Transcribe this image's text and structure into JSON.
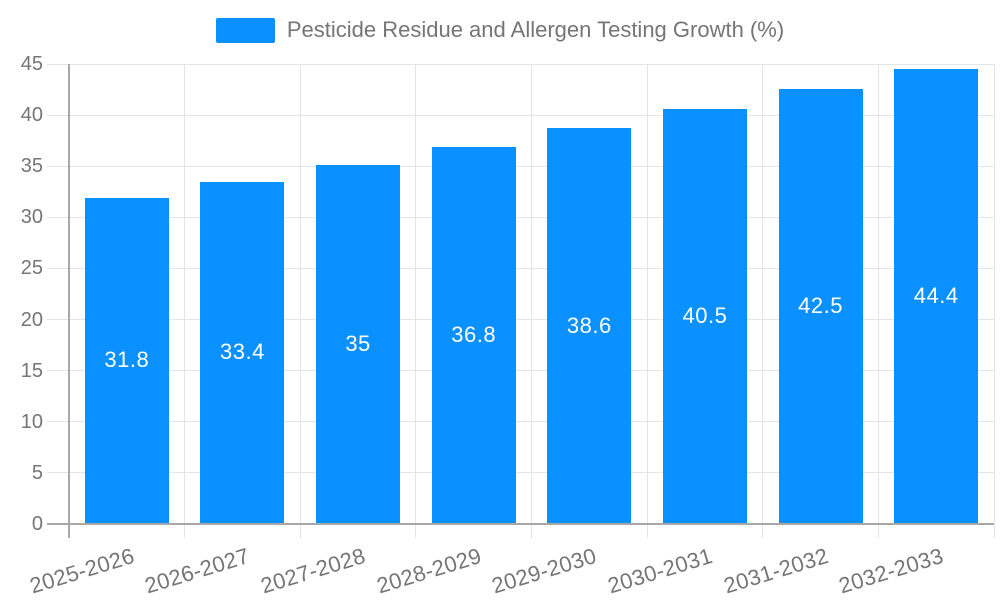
{
  "chart_data": {
    "type": "bar",
    "title": "Pesticide Residue and Allergen Testing Growth (%)",
    "categories": [
      "2025-2026",
      "2026-2027",
      "2027-2028",
      "2028-2029",
      "2029-2030",
      "2030-2031",
      "2031-2032",
      "2032-2033"
    ],
    "values": [
      31.8,
      33.4,
      35,
      36.8,
      38.6,
      40.5,
      42.5,
      44.4
    ],
    "value_labels": [
      "31.8",
      "33.4",
      "35",
      "36.8",
      "38.6",
      "40.5",
      "42.5",
      "44.4"
    ],
    "xlabel": "",
    "ylabel": "",
    "ylim": [
      0,
      45
    ],
    "ytick_step": 5,
    "ytick_labels": [
      "0",
      "5",
      "10",
      "15",
      "20",
      "25",
      "30",
      "35",
      "40",
      "45"
    ],
    "grid": true,
    "legend_position": "top-center",
    "x_label_rotation_deg": -17,
    "colors": {
      "bar": "#0a90ff",
      "grid": "#e5e5e5",
      "axis": "#a8a8a8",
      "tick_text": "#757575",
      "title_text": "#757575",
      "value_text": "#ffffff"
    }
  }
}
